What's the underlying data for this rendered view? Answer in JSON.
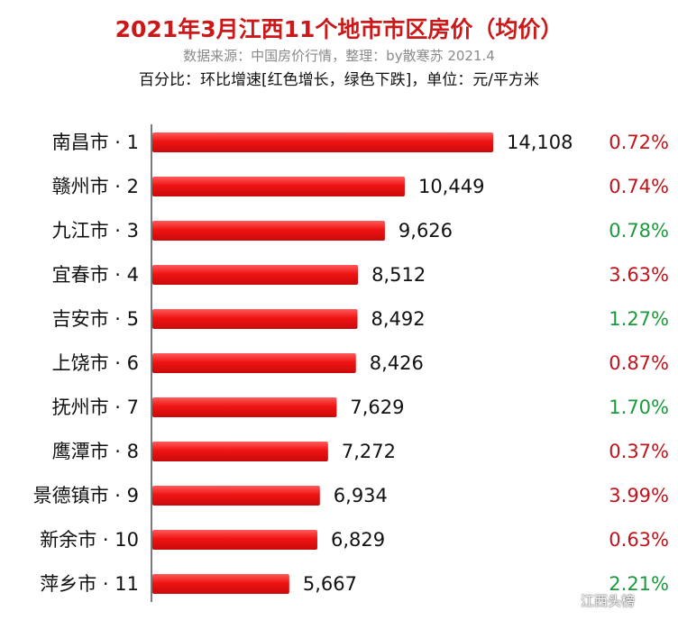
{
  "header": {
    "title": "2021年3月江西11个地市市区房价（均价）",
    "source": "数据来源：中国房价行情，整理：by散寒苏  2021.4",
    "note": "百分比：环比增速[红色增长，绿色下跌]，单位：元/平方米"
  },
  "watermark": {
    "text": "江西头榜",
    "icon": "wechat-icon"
  },
  "colors": {
    "bar": "#f01818",
    "pct_up": "#c0141c",
    "pct_down": "#1a9a3c",
    "title": "#cc1818"
  },
  "chart_data": {
    "type": "bar",
    "orientation": "horizontal",
    "title": "2021年3月江西11个地市市区房价（均价）",
    "categories": [
      "南昌市 · 1",
      "赣州市 · 2",
      "九江市 · 3",
      "宜春市 · 4",
      "吉安市 · 5",
      "上饶市 · 6",
      "抚州市 · 7",
      "鹰潭市 · 8",
      "景德镇市 · 9",
      "新余市 · 10",
      "萍乡市 · 11"
    ],
    "values": [
      14108,
      10449,
      9626,
      8512,
      8492,
      8426,
      7629,
      7272,
      6934,
      6829,
      5667
    ],
    "value_labels": [
      "14,108",
      "10,449",
      "9,626",
      "8,512",
      "8,492",
      "8,426",
      "7,629",
      "7,272",
      "6,934",
      "6,829",
      "5,667"
    ],
    "change_labels": [
      "0.72%",
      "0.74%",
      "0.78%",
      "3.63%",
      "1.27%",
      "0.87%",
      "1.70%",
      "0.37%",
      "3.99%",
      "0.63%",
      "2.21%"
    ],
    "change_direction": [
      "up",
      "up",
      "down",
      "up",
      "down",
      "up",
      "down",
      "up",
      "up",
      "up",
      "down"
    ],
    "xlim": [
      0,
      14108
    ],
    "grid": false,
    "legend": "none"
  }
}
